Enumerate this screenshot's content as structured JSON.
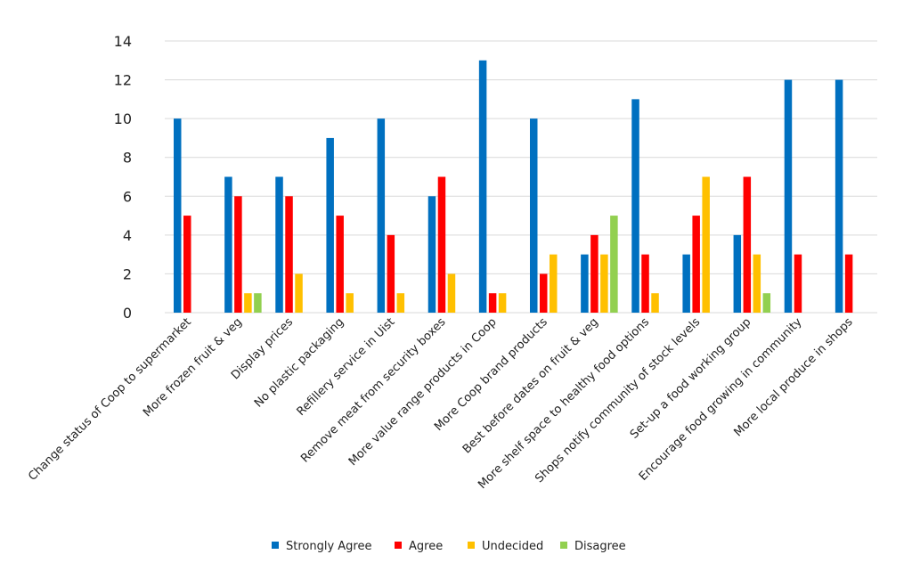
{
  "chart_data": {
    "type": "bar",
    "title": "",
    "xlabel": "",
    "ylabel": "",
    "ylim": [
      0,
      14
    ],
    "yticks": [
      0,
      2,
      4,
      6,
      8,
      10,
      12,
      14
    ],
    "grid": true,
    "legend_position": "bottom",
    "categories": [
      "Change status of Coop to supermarket",
      "More frozen fruit & veg",
      "Display prices",
      "No plastic packaging",
      "Refillery service in Uist",
      "Remove meat from security boxes",
      "More value range products in Coop",
      "More Coop brand products",
      "Best before dates on fruit & veg",
      "More shelf space to healthy food options",
      "Shops notify community of stock levels",
      "Set-up a food working group",
      "Encourage food growing in community",
      "More local produce in shops"
    ],
    "series": [
      {
        "name": "Strongly Agree",
        "color": "#0070C0",
        "values": [
          10,
          7,
          7,
          9,
          10,
          6,
          13,
          10,
          3,
          11,
          3,
          4,
          12,
          12
        ]
      },
      {
        "name": "Agree",
        "color": "#FF0000",
        "values": [
          5,
          6,
          6,
          5,
          4,
          7,
          1,
          2,
          4,
          3,
          5,
          7,
          3,
          3
        ]
      },
      {
        "name": "Undecided",
        "color": "#FFC000",
        "values": [
          0,
          1,
          2,
          1,
          1,
          2,
          1,
          3,
          3,
          1,
          7,
          3,
          0,
          0
        ]
      },
      {
        "name": "Disagree",
        "color": "#92D050",
        "values": [
          0,
          1,
          0,
          0,
          0,
          0,
          0,
          0,
          5,
          0,
          0,
          1,
          0,
          0
        ]
      }
    ]
  }
}
